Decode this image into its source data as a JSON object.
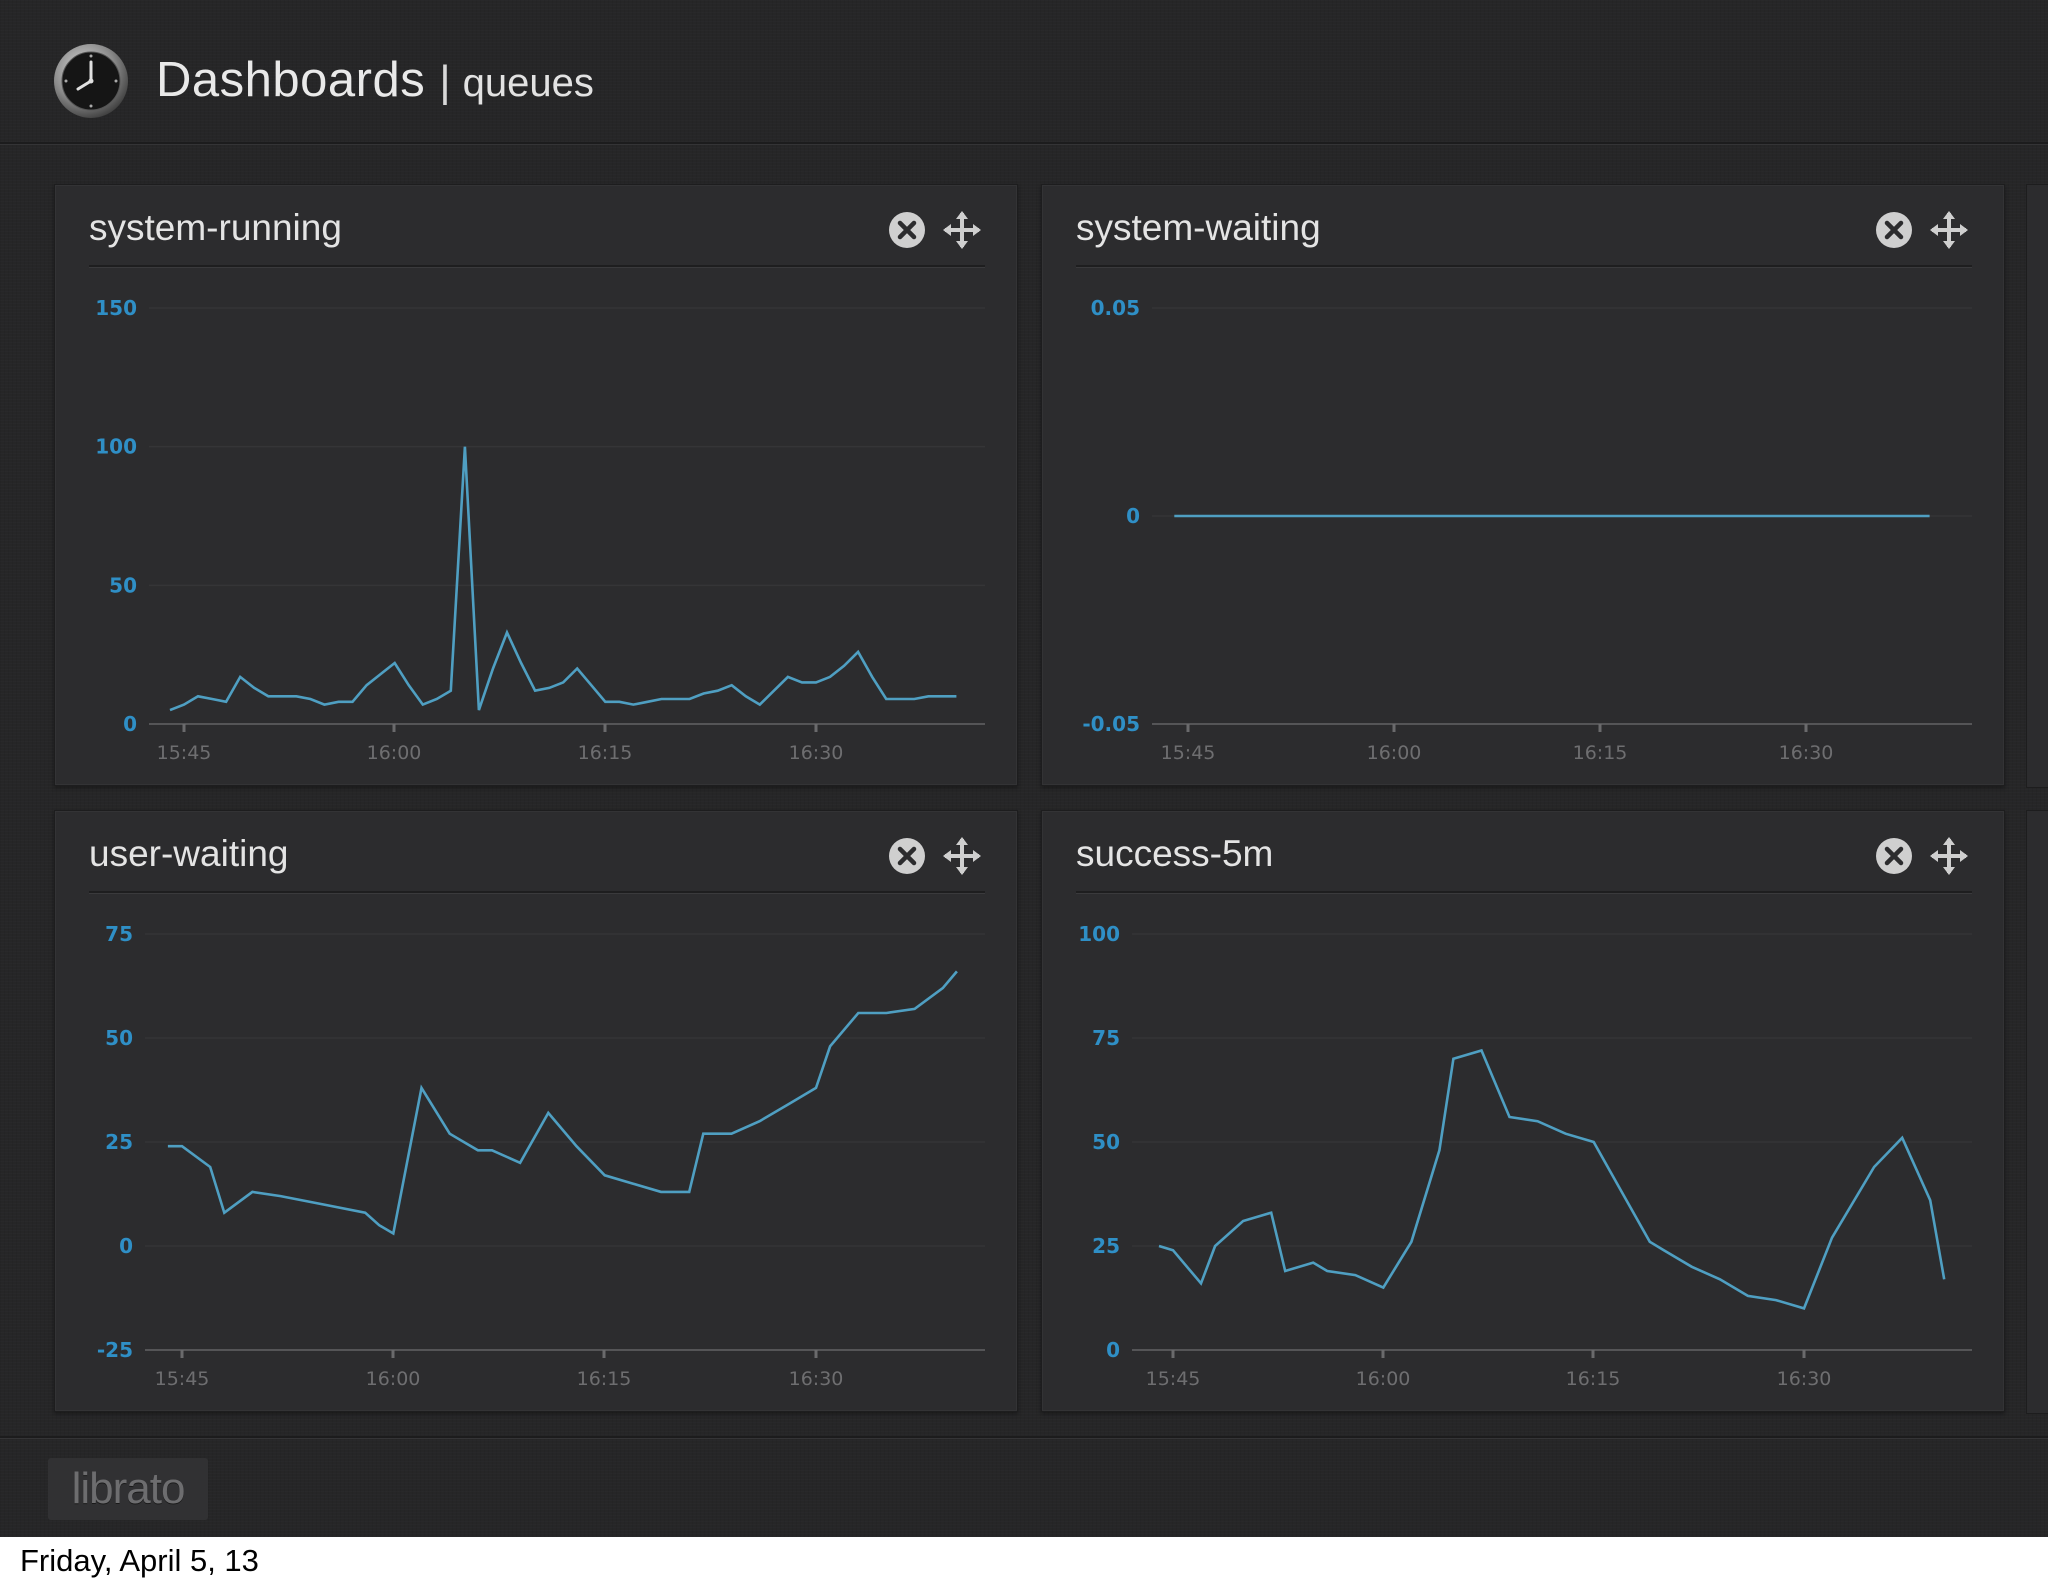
{
  "header": {
    "title": "Dashboards",
    "separator": "|",
    "subtitle": "queues",
    "logo_icon": "clock-icon"
  },
  "colors": {
    "background": "#262627",
    "panel": "#2c2c2e",
    "line": "#4f9fc2",
    "y_tick_text": "#2f8fc6",
    "x_tick_text": "#6e6e70",
    "gridline": "#353537"
  },
  "panels": [
    {
      "title": "system-running",
      "close_icon": "close-icon",
      "move_icon": "move-icon"
    },
    {
      "title": "system-waiting",
      "close_icon": "close-icon",
      "move_icon": "move-icon"
    },
    {
      "title": "user-waiting",
      "close_icon": "close-icon",
      "move_icon": "move-icon"
    },
    {
      "title": "success-5m",
      "close_icon": "close-icon",
      "move_icon": "move-icon"
    }
  ],
  "chart_data": [
    {
      "type": "line",
      "title": "system-running",
      "x_ticks": [
        "15:45",
        "16:00",
        "16:15",
        "16:30"
      ],
      "y_ticks": [
        "0",
        "50",
        "100",
        "150"
      ],
      "ylim": [
        0,
        150
      ],
      "xlim": [
        15.75,
        16.79
      ],
      "grid": true,
      "series": [
        {
          "x": [
            "15:44",
            "15:45",
            "15:46",
            "15:47",
            "15:48",
            "15:49",
            "15:50",
            "15:51",
            "15:52",
            "15:53",
            "15:54",
            "15:55",
            "15:56",
            "15:57",
            "15:58",
            "15:59",
            "16:00",
            "16:01",
            "16:02",
            "16:03",
            "16:04",
            "16:05",
            "16:06",
            "16:07",
            "16:08",
            "16:09",
            "16:10",
            "16:11",
            "16:12",
            "16:13",
            "16:14",
            "16:15",
            "16:16",
            "16:17",
            "16:18",
            "16:19",
            "16:20",
            "16:21",
            "16:22",
            "16:23",
            "16:24",
            "16:25",
            "16:26",
            "16:27",
            "16:28",
            "16:29",
            "16:30",
            "16:31",
            "16:32",
            "16:33",
            "16:34",
            "16:35",
            "16:36",
            "16:37",
            "16:38",
            "16:39",
            "16:40"
          ],
          "values": [
            5,
            7,
            10,
            9,
            8,
            17,
            13,
            10,
            10,
            10,
            9,
            7,
            8,
            8,
            14,
            18,
            22,
            14,
            7,
            9,
            12,
            100,
            5,
            20,
            33,
            22,
            12,
            13,
            15,
            20,
            14,
            8,
            8,
            7,
            8,
            9,
            9,
            9,
            11,
            12,
            14,
            10,
            7,
            12,
            17,
            15,
            15,
            17,
            21,
            26,
            17,
            9,
            9,
            9,
            10,
            10,
            10
          ]
        }
      ]
    },
    {
      "type": "line",
      "title": "system-waiting",
      "x_ticks": [
        "15:45",
        "16:00",
        "16:15",
        "16:30"
      ],
      "y_ticks": [
        "-0.05",
        "0",
        "0.05"
      ],
      "ylim": [
        -0.05,
        0.05
      ],
      "grid": true,
      "series": [
        {
          "x": [
            "15:44",
            "16:39"
          ],
          "values": [
            0,
            0
          ]
        }
      ]
    },
    {
      "type": "line",
      "title": "user-waiting",
      "x_ticks": [
        "15:45",
        "16:00",
        "16:15",
        "16:30"
      ],
      "y_ticks": [
        "-25",
        "0",
        "25",
        "50",
        "75"
      ],
      "ylim": [
        -25,
        75
      ],
      "grid": true,
      "series": [
        {
          "x": [
            "15:44",
            "15:45",
            "15:47",
            "15:48",
            "15:50",
            "15:52",
            "15:55",
            "15:58",
            "15:59",
            "16:00",
            "16:02",
            "16:04",
            "16:06",
            "16:07",
            "16:09",
            "16:11",
            "16:13",
            "16:15",
            "16:17",
            "16:19",
            "16:21",
            "16:22",
            "16:24",
            "16:26",
            "16:28",
            "16:30",
            "16:31",
            "16:33",
            "16:35",
            "16:37",
            "16:39",
            "16:40"
          ],
          "values": [
            24,
            24,
            19,
            8,
            13,
            12,
            10,
            8,
            5,
            3,
            38,
            27,
            23,
            23,
            20,
            32,
            24,
            17,
            15,
            13,
            13,
            27,
            27,
            30,
            34,
            38,
            48,
            56,
            56,
            57,
            62,
            66
          ]
        }
      ]
    },
    {
      "type": "line",
      "title": "success-5m",
      "x_ticks": [
        "15:45",
        "16:00",
        "16:15",
        "16:30"
      ],
      "y_ticks": [
        "0",
        "25",
        "50",
        "75",
        "100"
      ],
      "ylim": [
        0,
        100
      ],
      "grid": true,
      "series": [
        {
          "x": [
            "15:44",
            "15:45",
            "15:47",
            "15:48",
            "15:50",
            "15:52",
            "15:53",
            "15:55",
            "15:56",
            "15:58",
            "16:00",
            "16:02",
            "16:04",
            "16:05",
            "16:07",
            "16:09",
            "16:11",
            "16:13",
            "16:15",
            "16:17",
            "16:19",
            "16:20",
            "16:22",
            "16:24",
            "16:26",
            "16:28",
            "16:30",
            "16:32",
            "16:35",
            "16:37",
            "16:39",
            "16:40"
          ],
          "values": [
            25,
            24,
            16,
            25,
            31,
            33,
            19,
            21,
            19,
            18,
            15,
            26,
            48,
            70,
            72,
            56,
            55,
            52,
            50,
            38,
            26,
            24,
            20,
            17,
            13,
            12,
            10,
            27,
            44,
            51,
            36,
            17
          ]
        }
      ]
    }
  ],
  "footer": {
    "logo_text": "librato"
  },
  "caption": "Friday, April 5, 13"
}
